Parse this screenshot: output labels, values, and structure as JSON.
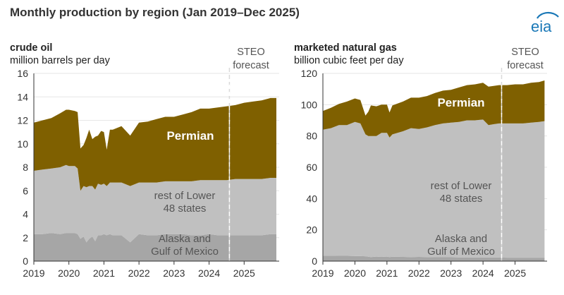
{
  "figure": {
    "title": "Monthly production by region (Jan 2019–Dec 2025)",
    "logo_text": "eia",
    "logo_color": "#1a78b7"
  },
  "colors": {
    "permian": "#7f6000",
    "rest": "#c0c0c0",
    "alaska_gom": "#a6a6a6",
    "grid": "#e6e6e6",
    "plot_bg": "#ffffff",
    "axis": "#333333",
    "forecast_line": "#ffffff",
    "permian_label": "#ffffff",
    "region_label": "#555555"
  },
  "chart_data": [
    {
      "type": "area",
      "stacked": true,
      "title": "crude oil",
      "ylabel": "million barrels per day",
      "ylim": [
        0,
        16
      ],
      "yticks": [
        0,
        2,
        4,
        6,
        8,
        10,
        12,
        14,
        16
      ],
      "xlim": [
        2019,
        2026
      ],
      "xticks": [
        2019,
        2020,
        2021,
        2022,
        2023,
        2024,
        2025
      ],
      "xtick_labels": [
        "2019",
        "2020",
        "2021",
        "2022",
        "2023",
        "2024",
        "2025"
      ],
      "grid": true,
      "forecast_start": 2024.58,
      "forecast_label": [
        "STEO",
        "forecast"
      ],
      "x": [
        2019.0,
        2019.25,
        2019.5,
        2019.75,
        2019.92,
        2020.0,
        2020.17,
        2020.25,
        2020.33,
        2020.42,
        2020.5,
        2020.58,
        2020.67,
        2020.75,
        2020.83,
        2020.92,
        2021.0,
        2021.08,
        2021.17,
        2021.25,
        2021.5,
        2021.75,
        2022.0,
        2022.25,
        2022.5,
        2022.75,
        2023.0,
        2023.25,
        2023.5,
        2023.75,
        2024.0,
        2024.25,
        2024.5,
        2024.75,
        2025.0,
        2025.25,
        2025.5,
        2025.75,
        2025.92
      ],
      "series": [
        {
          "name": "Alaska and Gulf of Mexico",
          "values": [
            2.3,
            2.3,
            2.4,
            2.3,
            2.4,
            2.4,
            2.4,
            2.3,
            1.9,
            2.1,
            1.6,
            1.9,
            2.1,
            1.7,
            2.2,
            2.2,
            2.3,
            2.2,
            2.3,
            2.2,
            2.2,
            1.6,
            2.3,
            2.2,
            2.2,
            2.3,
            2.3,
            2.3,
            2.2,
            2.2,
            2.3,
            2.2,
            2.2,
            2.2,
            2.2,
            2.2,
            2.2,
            2.3,
            2.3
          ]
        },
        {
          "name": "rest of Lower 48 states",
          "values": [
            5.4,
            5.5,
            5.5,
            5.7,
            5.8,
            5.7,
            5.7,
            5.6,
            4.1,
            4.3,
            4.7,
            4.5,
            4.3,
            4.4,
            4.4,
            4.3,
            4.3,
            4.2,
            4.4,
            4.5,
            4.5,
            4.8,
            4.4,
            4.5,
            4.5,
            4.5,
            4.5,
            4.5,
            4.6,
            4.7,
            4.6,
            4.7,
            4.7,
            4.8,
            4.8,
            4.8,
            4.8,
            4.8,
            4.8
          ]
        },
        {
          "name": "Permian",
          "values": [
            4.1,
            4.2,
            4.3,
            4.6,
            4.7,
            4.8,
            4.7,
            4.8,
            3.6,
            3.5,
            4.2,
            4.8,
            4.0,
            4.5,
            4.1,
            4.6,
            4.4,
            3.1,
            4.5,
            4.5,
            4.8,
            4.3,
            5.1,
            5.2,
            5.4,
            5.5,
            5.5,
            5.7,
            5.9,
            6.1,
            6.1,
            6.2,
            6.3,
            6.3,
            6.5,
            6.6,
            6.7,
            6.8,
            6.8
          ]
        }
      ],
      "region_labels": {
        "permian": "Permian",
        "rest": [
          "rest of Lower",
          "48 states"
        ],
        "alaska_gom": [
          "Alaska and",
          "Gulf of Mexico"
        ]
      }
    },
    {
      "type": "area",
      "stacked": true,
      "title": "marketed natural gas",
      "ylabel": "billion cubic feet per day",
      "ylim": [
        0,
        120
      ],
      "yticks": [
        0,
        20,
        40,
        60,
        80,
        100,
        120
      ],
      "xlim": [
        2019,
        2026
      ],
      "xticks": [
        2019,
        2020,
        2021,
        2022,
        2023,
        2024,
        2025
      ],
      "xtick_labels": [
        "2019",
        "2020",
        "2021",
        "2022",
        "2023",
        "2024",
        "2025"
      ],
      "grid": true,
      "forecast_start": 2024.58,
      "forecast_label": [
        "STEO",
        "forecast"
      ],
      "x": [
        2019.0,
        2019.25,
        2019.5,
        2019.75,
        2020.0,
        2020.17,
        2020.33,
        2020.42,
        2020.5,
        2020.67,
        2020.83,
        2021.0,
        2021.08,
        2021.17,
        2021.5,
        2021.75,
        2022.0,
        2022.25,
        2022.5,
        2022.75,
        2023.0,
        2023.25,
        2023.5,
        2023.75,
        2024.0,
        2024.17,
        2024.33,
        2024.5,
        2024.75,
        2025.0,
        2025.25,
        2025.5,
        2025.75,
        2025.92
      ],
      "series": [
        {
          "name": "Alaska and Gulf of Mexico",
          "values": [
            3.5,
            3.5,
            3.4,
            3.4,
            3.3,
            3.2,
            3.1,
            2.8,
            2.6,
            2.9,
            2.7,
            2.9,
            2.6,
            2.8,
            2.7,
            2.6,
            2.7,
            2.6,
            2.5,
            2.5,
            2.5,
            2.4,
            2.4,
            2.3,
            2.3,
            2.3,
            2.3,
            2.3,
            2.2,
            2.2,
            2.2,
            2.2,
            2.2,
            2.2
          ]
        },
        {
          "name": "rest of Lower 48 states",
          "values": [
            80.5,
            81.5,
            83.6,
            83.6,
            85.7,
            84.8,
            77.9,
            77.2,
            77.4,
            77.1,
            79.3,
            79.1,
            76.4,
            78.2,
            80.3,
            82.4,
            81.8,
            82.9,
            84.5,
            85.5,
            86.0,
            86.6,
            87.6,
            87.7,
            88.2,
            84.7,
            85.2,
            85.7,
            85.8,
            85.8,
            85.8,
            86.3,
            86.8,
            87.3
          ]
        },
        {
          "name": "Permian",
          "values": [
            12.0,
            13.0,
            13.5,
            15.0,
            15.0,
            15.0,
            12.0,
            15.5,
            19.5,
            19.0,
            18.0,
            18.0,
            16.0,
            18.5,
            19.0,
            19.5,
            20.0,
            20.0,
            20.5,
            21.0,
            21.0,
            22.0,
            22.5,
            23.0,
            23.5,
            24.5,
            24.5,
            24.5,
            24.5,
            25.0,
            25.0,
            25.5,
            25.5,
            26.0
          ]
        }
      ],
      "region_labels": {
        "permian": "Permian",
        "rest": [
          "rest of Lower",
          "48 states"
        ],
        "alaska_gom": [
          "Alaska and",
          "Gulf of Mexico"
        ]
      }
    }
  ]
}
